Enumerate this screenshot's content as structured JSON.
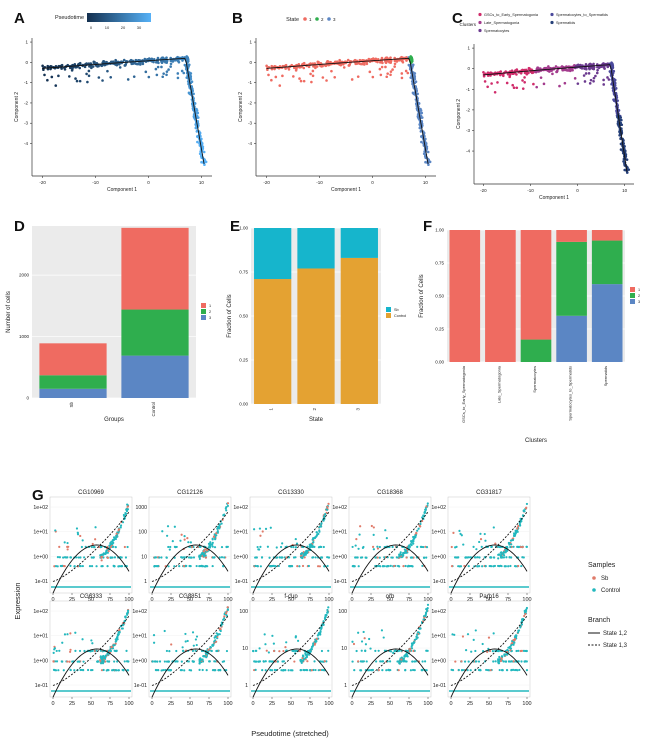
{
  "colors": {
    "state1": "#ef6b61",
    "state2": "#2fae4e",
    "state3": "#5b86c4",
    "sb": "#e07b6a",
    "control": "#23b8be",
    "groupSb": "#16b5cc",
    "groupControl": "#e4a232",
    "pseudo_lo": "#14304f",
    "pseudo_hi": "#56b1f7",
    "clusterGSC": "#d02c6b",
    "clusterLate": "#a33b8d",
    "clusterSpermatocytes": "#6b3a8f",
    "clusterSpc2Spt": "#4b4a9c",
    "clusterSpermatids": "#253f78"
  },
  "panels": {
    "A": {
      "letter": "A",
      "legend_title": "Pseudotime",
      "legend_ticks": [
        "0",
        "10",
        "20",
        "30"
      ],
      "xlabel": "Component 1",
      "ylabel": "Component 2"
    },
    "B": {
      "letter": "B",
      "legend_title": "State",
      "legend_items": [
        "1",
        "2",
        "3"
      ],
      "xlabel": "Component 1",
      "ylabel": "Component 2"
    },
    "C": {
      "letter": "C",
      "legend_title": "Clusters",
      "legend_items": [
        "GSCs_to_Early_Spermatogonia",
        "Spermatocytes_to_Spermatids",
        "Late_Spermatogonia",
        "Spermatids",
        "Spermatocytes"
      ],
      "xlabel": "Component 1",
      "ylabel": "Component 2"
    },
    "D": {
      "letter": "D",
      "xlabel": "Groups",
      "ylabel": "Number of cells"
    },
    "E": {
      "letter": "E",
      "xlabel": "State",
      "ylabel": "Fraction of Cells"
    },
    "F": {
      "letter": "F",
      "xlabel": "Clusters",
      "ylabel": "Fraction of Cells"
    },
    "G": {
      "letter": "G",
      "xlabel": "Pseudotime (stretched)",
      "ylabel": "Expression",
      "legend_samples_title": "Samples",
      "legend_samples": [
        "Sb",
        "Control"
      ],
      "legend_branch_title": "Branch",
      "legend_branch": [
        "State 1,2",
        "State 1,3"
      ]
    }
  },
  "chart_data": [
    {
      "id": "A",
      "type": "scatter",
      "title": "",
      "xlabel": "Component 1",
      "ylabel": "Component 2",
      "xlim": [
        -22,
        12
      ],
      "ylim": [
        -5.6,
        1.2
      ],
      "x_ticks": [
        -20,
        -10,
        0,
        10
      ],
      "y_ticks": [
        -4,
        -3,
        -2,
        -1,
        0,
        1
      ],
      "x_ticklabels": [
        "-20",
        "-10",
        "0",
        "10"
      ],
      "y_ticklabels": [
        "-4",
        "-3",
        "-2",
        "-1",
        "0",
        "1"
      ],
      "color_by": "pseudotime",
      "legend": "Pseudotime",
      "legend_range": [
        0,
        30
      ]
    },
    {
      "id": "B",
      "type": "scatter",
      "title": "",
      "xlabel": "Component 1",
      "ylabel": "Component 2",
      "xlim": [
        -22,
        12
      ],
      "ylim": [
        -5.6,
        1.2
      ],
      "x_ticks": [
        -20,
        -10,
        0,
        10
      ],
      "y_ticks": [
        -4,
        -3,
        -2,
        -1,
        0,
        1
      ],
      "x_ticklabels": [
        "-20",
        "-10",
        "0",
        "10"
      ],
      "y_ticklabels": [
        "-4",
        "-3",
        "-2",
        "-1",
        "0",
        "1"
      ],
      "color_by": "State",
      "states": [
        "1",
        "2",
        "3"
      ]
    },
    {
      "id": "C",
      "type": "scatter",
      "title": "",
      "xlabel": "Component 1",
      "ylabel": "Component 2",
      "xlim": [
        -22,
        12
      ],
      "ylim": [
        -5.6,
        1.2
      ],
      "x_ticks": [
        -20,
        -10,
        0,
        10
      ],
      "y_ticks": [
        -4,
        -3,
        -2,
        -1,
        0,
        1
      ],
      "x_ticklabels": [
        "-20",
        "-10",
        "0",
        "10"
      ],
      "y_ticklabels": [
        "-4",
        "-3",
        "-2",
        "-1",
        "0",
        "1"
      ],
      "color_by": "Clusters",
      "clusters": [
        "GSCs_to_Early_Spermatogonia",
        "Late_Spermatogonia",
        "Spermatocytes",
        "Spermatocytes_to_Spermatids",
        "Spermatids"
      ]
    },
    {
      "id": "D",
      "type": "bar",
      "stacked": true,
      "xlabel": "Groups",
      "ylabel": "Number of cells",
      "categories": [
        "Sb",
        "Control"
      ],
      "ylim": [
        0,
        2800
      ],
      "y_ticks": [
        0,
        1000,
        2000
      ],
      "y_ticklabels": [
        "0",
        "1000",
        "2000"
      ],
      "series": [
        {
          "name": "1",
          "values": [
            520,
            1330
          ]
        },
        {
          "name": "2",
          "values": [
            220,
            750
          ]
        },
        {
          "name": "3",
          "values": [
            150,
            690
          ]
        }
      ]
    },
    {
      "id": "E",
      "type": "bar",
      "stacked": true,
      "xlabel": "State",
      "ylabel": "Fraction of Cells",
      "categories": [
        "1",
        "2",
        "3"
      ],
      "ylim": [
        0,
        1
      ],
      "y_ticks": [
        0,
        0.25,
        0.5,
        0.75,
        1.0
      ],
      "y_ticklabels": [
        "0.00",
        "0.25",
        "0.50",
        "0.75",
        "1.00"
      ],
      "series": [
        {
          "name": "Sb",
          "values": [
            0.29,
            0.23,
            0.17
          ]
        },
        {
          "name": "Control",
          "values": [
            0.71,
            0.77,
            0.83
          ]
        }
      ]
    },
    {
      "id": "F",
      "type": "bar",
      "stacked": true,
      "xlabel": "Clusters",
      "ylabel": "Fraction of Cells",
      "categories": [
        "GSCs_to_Early_Spermatogonia",
        "Late_Spermatogonia",
        "Spermatocytes",
        "Spermatocytes_to_Spermatids",
        "Spermatids"
      ],
      "ylim": [
        0,
        1
      ],
      "y_ticks": [
        0,
        0.25,
        0.5,
        0.75,
        1.0
      ],
      "y_ticklabels": [
        "0.00",
        "0.25",
        "0.50",
        "0.75",
        "1.00"
      ],
      "series": [
        {
          "name": "1",
          "values": [
            1.0,
            1.0,
            0.83,
            0.09,
            0.08
          ]
        },
        {
          "name": "2",
          "values": [
            0.0,
            0.0,
            0.17,
            0.56,
            0.33
          ]
        },
        {
          "name": "3",
          "values": [
            0.0,
            0.0,
            0.0,
            0.35,
            0.59
          ]
        }
      ]
    },
    {
      "id": "G",
      "type": "scatter",
      "xlabel": "Pseudotime (stretched)",
      "ylabel": "Expression",
      "x_ticks": [
        0,
        25,
        50,
        75,
        100
      ],
      "x_ticklabels": [
        "0",
        "25",
        "50",
        "75",
        "100"
      ],
      "legend_samples": [
        "Sb",
        "Control"
      ],
      "legend_branch": [
        "State 1,2",
        "State 1,3"
      ],
      "subplots": [
        {
          "gene": "CG10969",
          "yticks": [
            "1e+02",
            "1e+01",
            "1e+00",
            "1e-01"
          ]
        },
        {
          "gene": "CG12126",
          "yticks": [
            "1000",
            "100",
            "10",
            "1"
          ]
        },
        {
          "gene": "CG13330",
          "yticks": [
            "1e+02",
            "1e+01",
            "1e+00",
            "1e-01"
          ]
        },
        {
          "gene": "CG18368",
          "yticks": [
            "1e+02",
            "1e+01",
            "1e+00",
            "1e-01"
          ]
        },
        {
          "gene": "CG31817",
          "yticks": [
            "1e+02",
            "1e+01",
            "1e+00",
            "1e-01"
          ]
        },
        {
          "gene": "CG6333",
          "yticks": [
            "1e+02",
            "1e+01",
            "1e+00",
            "1e-01"
          ]
        },
        {
          "gene": "CG8851",
          "yticks": [
            "1e+02",
            "1e+01",
            "1e+00",
            "1e-01"
          ]
        },
        {
          "gene": "f-cup",
          "yticks": [
            "100",
            "10",
            "1"
          ]
        },
        {
          "gene": "orb",
          "yticks": [
            "100",
            "10",
            "1"
          ]
        },
        {
          "gene": "Parp16",
          "yticks": [
            "1e+02",
            "1e+01",
            "1e+00",
            "1e-01"
          ]
        }
      ]
    }
  ]
}
